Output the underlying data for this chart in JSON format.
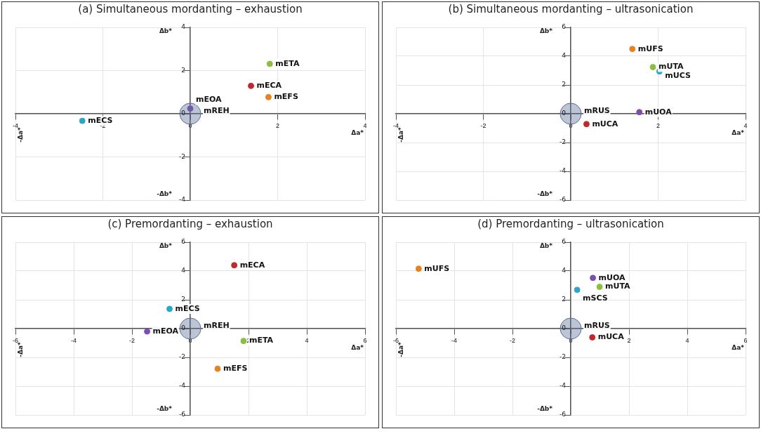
{
  "chart_data": [
    {
      "type": "bubble",
      "title": "(a) Simultaneous mordanting – exhaustion",
      "xlabel": "Δa*",
      "ylabel": "Δb*",
      "annotations": [
        "-Δb*",
        "-Δa*"
      ],
      "xlim": [
        -4,
        4
      ],
      "ylim": [
        -4,
        4
      ],
      "xticks": [
        -4,
        -2,
        0,
        2,
        4
      ],
      "yticks": [
        -4,
        -2,
        0,
        2,
        4
      ],
      "grid": true,
      "series": [
        {
          "name": "mREH",
          "color": "#5a6e96",
          "x": [
            0
          ],
          "values": [
            0
          ],
          "sizes": [
            1
          ]
        },
        {
          "name": "mEOA",
          "color": "#7b4fb0",
          "x": [
            0
          ],
          "values": [
            0.24
          ],
          "sizes": [
            0.07
          ]
        },
        {
          "name": "mETA",
          "color": "#8cbf3f",
          "x": [
            1.82
          ],
          "values": [
            2.31
          ],
          "sizes": [
            0.07
          ]
        },
        {
          "name": "mECA",
          "color": "#c0282d",
          "x": [
            1.39
          ],
          "values": [
            1.29
          ],
          "sizes": [
            0.07
          ]
        },
        {
          "name": "mEFS",
          "color": "#e8821e",
          "x": [
            1.79
          ],
          "values": [
            0.77
          ],
          "sizes": [
            0.07
          ]
        },
        {
          "name": "mECS",
          "color": "#2aa6c8",
          "x": [
            -2.47
          ],
          "values": [
            -0.33
          ],
          "sizes": [
            0.07
          ]
        }
      ]
    },
    {
      "type": "bubble",
      "title": "(b) Simultaneous mordanting – ultrasonication",
      "xlabel": "Δa*",
      "ylabel": "Δb*",
      "annotations": [
        "-Δb*",
        "-Δa*"
      ],
      "xlim": [
        -4,
        4
      ],
      "ylim": [
        -6,
        6
      ],
      "xticks": [
        -4,
        -2,
        0,
        2,
        4
      ],
      "yticks": [
        -6,
        -4,
        -2,
        0,
        2,
        4,
        6
      ],
      "grid": true,
      "series": [
        {
          "name": "mRUS",
          "color": "#5a6e96",
          "x": [
            0
          ],
          "values": [
            0
          ],
          "sizes": [
            1
          ]
        },
        {
          "name": "mUFS",
          "color": "#e8821e",
          "x": [
            1.41
          ],
          "values": [
            4.5
          ],
          "sizes": [
            0.07
          ]
        },
        {
          "name": "mUTA",
          "color": "#8cbf3f",
          "x": [
            1.88
          ],
          "values": [
            3.24
          ],
          "sizes": [
            0.07
          ]
        },
        {
          "name": "mUCS",
          "color": "#2aa6c8",
          "x": [
            2.03
          ],
          "values": [
            2.94
          ],
          "sizes": [
            0.07
          ]
        },
        {
          "name": "mUOA",
          "color": "#7b4fb0",
          "x": [
            1.57
          ],
          "values": [
            0.11
          ],
          "sizes": [
            0.07
          ]
        },
        {
          "name": "mUCA",
          "color": "#c0282d",
          "x": [
            0.36
          ],
          "values": [
            -0.72
          ],
          "sizes": [
            0.07
          ]
        }
      ]
    },
    {
      "type": "bubble",
      "title": "(c) Premordanting – exhaustion",
      "xlabel": "Δa*",
      "ylabel": "Δb*",
      "annotations": [
        "-Δb*",
        "-Δa*"
      ],
      "xlim": [
        -6,
        6
      ],
      "ylim": [
        -6,
        6
      ],
      "xticks": [
        -6,
        -4,
        -2,
        0,
        2,
        4,
        6
      ],
      "yticks": [
        -6,
        -4,
        -2,
        0,
        2,
        4,
        6
      ],
      "grid": true,
      "series": [
        {
          "name": "mREH",
          "color": "#5a6e96",
          "x": [
            0
          ],
          "values": [
            0
          ],
          "sizes": [
            1
          ]
        },
        {
          "name": "mECA",
          "color": "#c0282d",
          "x": [
            1.51
          ],
          "values": [
            4.4
          ],
          "sizes": [
            0.07
          ]
        },
        {
          "name": "mECS",
          "color": "#2aa6c8",
          "x": [
            -0.71
          ],
          "values": [
            1.37
          ],
          "sizes": [
            0.07
          ]
        },
        {
          "name": "mEOA",
          "color": "#7b4fb0",
          "x": [
            -1.48
          ],
          "values": [
            -0.2
          ],
          "sizes": [
            0.07
          ]
        },
        {
          "name": "mETA",
          "color": "#8cbf3f",
          "x": [
            1.83
          ],
          "values": [
            -0.86
          ],
          "sizes": [
            0.07
          ]
        },
        {
          "name": "mEFS",
          "color": "#e8821e",
          "x": [
            0.94
          ],
          "values": [
            -2.79
          ],
          "sizes": [
            0.07
          ]
        }
      ]
    },
    {
      "type": "bubble",
      "title": "(d) Premordanting – ultrasonication",
      "xlabel": "Δa*",
      "ylabel": "Δb*",
      "annotations": [
        "-Δb*",
        "-Δa*"
      ],
      "xlim": [
        -6,
        6
      ],
      "ylim": [
        -6,
        6
      ],
      "xticks": [
        -6,
        -4,
        -2,
        0,
        2,
        4,
        6
      ],
      "yticks": [
        -6,
        -4,
        -2,
        0,
        2,
        4,
        6
      ],
      "grid": true,
      "series": [
        {
          "name": "mRUS",
          "color": "#5a6e96",
          "x": [
            0
          ],
          "values": [
            0
          ],
          "sizes": [
            1
          ]
        },
        {
          "name": "mUFS",
          "color": "#e8821e",
          "x": [
            -5.22
          ],
          "values": [
            4.16
          ],
          "sizes": [
            0.07
          ]
        },
        {
          "name": "mUOA",
          "color": "#7b4fb0",
          "x": [
            0.76
          ],
          "values": [
            3.52
          ],
          "sizes": [
            0.07
          ]
        },
        {
          "name": "mUTA",
          "color": "#8cbf3f",
          "x": [
            0.99
          ],
          "values": [
            2.9
          ],
          "sizes": [
            0.07
          ]
        },
        {
          "name": "mSCS",
          "color": "#2aa6c8",
          "x": [
            0.22
          ],
          "values": [
            2.69
          ],
          "sizes": [
            0.07
          ]
        },
        {
          "name": "mUCA",
          "color": "#c0282d",
          "x": [
            0.74
          ],
          "values": [
            -0.61
          ],
          "sizes": [
            0.07
          ]
        }
      ]
    }
  ]
}
